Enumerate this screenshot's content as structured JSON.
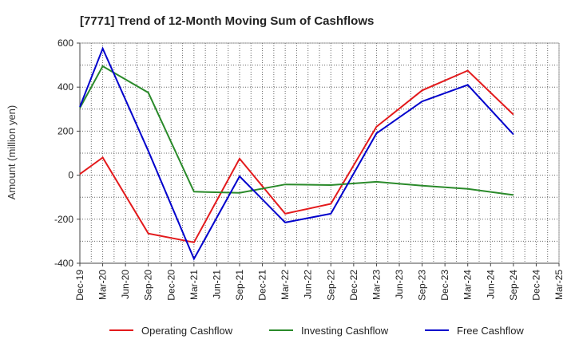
{
  "chart_data": {
    "type": "line",
    "title": "[7771]  Trend of 12-Month Moving Sum of Cashflows",
    "xlabel": "",
    "ylabel": "Amount (million yen)",
    "ylim": [
      -400,
      600
    ],
    "yticks": [
      -400,
      -200,
      0,
      200,
      400,
      600
    ],
    "grid": true,
    "legend_position": "bottom",
    "categories": [
      "Dec-19",
      "Mar-20",
      "Jun-20",
      "Sep-20",
      "Dec-20",
      "Mar-21",
      "Jun-21",
      "Sep-21",
      "Dec-21",
      "Mar-22",
      "Jun-22",
      "Sep-22",
      "Dec-22",
      "Mar-23",
      "Jun-23",
      "Sep-23",
      "Dec-23",
      "Mar-24",
      "Jun-24",
      "Sep-24",
      "Dec-24",
      "Mar-25"
    ],
    "series": [
      {
        "name": "Operating Cashflow",
        "color": "#e31a1c",
        "values": [
          5,
          80,
          null,
          -265,
          null,
          -305,
          null,
          75,
          null,
          -175,
          null,
          -130,
          null,
          220,
          null,
          385,
          null,
          475,
          null,
          275,
          null,
          null
        ]
      },
      {
        "name": "Investing Cashflow",
        "color": "#2a8a2a",
        "values": [
          305,
          495,
          null,
          375,
          null,
          -75,
          null,
          -80,
          null,
          -42,
          null,
          -45,
          null,
          -30,
          null,
          -48,
          null,
          -62,
          null,
          -90,
          null,
          null
        ]
      },
      {
        "name": "Free Cashflow",
        "color": "#0000cc",
        "values": [
          310,
          575,
          null,
          110,
          null,
          -380,
          null,
          -5,
          null,
          -215,
          null,
          -175,
          null,
          190,
          null,
          335,
          null,
          410,
          null,
          185,
          null,
          null
        ]
      }
    ]
  }
}
